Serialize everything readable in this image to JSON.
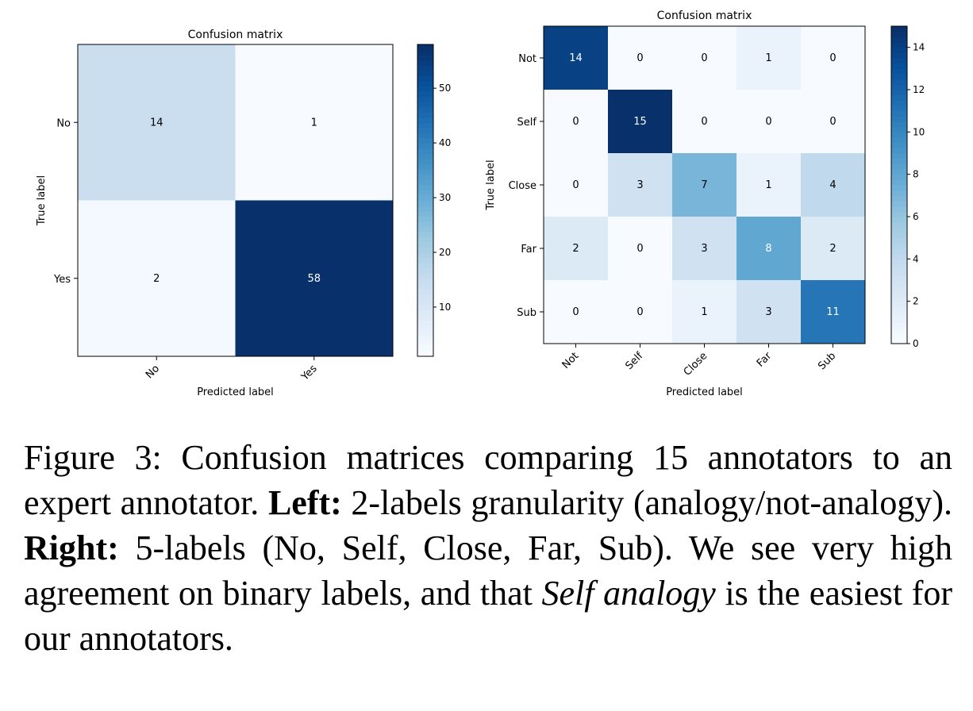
{
  "chart_data": [
    {
      "type": "heatmap",
      "title": "Confusion matrix",
      "xlabel": "Predicted label",
      "ylabel": "True label",
      "x_categories": [
        "No",
        "Yes"
      ],
      "y_categories": [
        "No",
        "Yes"
      ],
      "values": [
        [
          14,
          1
        ],
        [
          2,
          58
        ]
      ],
      "colormap": "Blues",
      "vmin": 1,
      "vmax": 58,
      "colorbar_ticks": [
        10,
        20,
        30,
        40,
        50
      ]
    },
    {
      "type": "heatmap",
      "title": "Confusion matrix",
      "xlabel": "Predicted label",
      "ylabel": "True label",
      "x_categories": [
        "Not",
        "Self",
        "Close",
        "Far",
        "Sub"
      ],
      "y_categories": [
        "Not",
        "Self",
        "Close",
        "Far",
        "Sub"
      ],
      "values": [
        [
          14,
          0,
          0,
          1,
          0
        ],
        [
          0,
          15,
          0,
          0,
          0
        ],
        [
          0,
          3,
          7,
          1,
          4
        ],
        [
          2,
          0,
          3,
          8,
          2
        ],
        [
          0,
          0,
          1,
          3,
          11
        ]
      ],
      "colormap": "Blues",
      "vmin": 0,
      "vmax": 15,
      "colorbar_ticks": [
        0,
        2,
        4,
        6,
        8,
        10,
        12,
        14
      ]
    }
  ],
  "caption": {
    "figure_label": "Figure 3:",
    "text_1": " Confusion matrices comparing 15 annotators to an expert annotator. ",
    "left_label": "Left:",
    "text_2": " 2-labels granularity (analogy/not-analogy). ",
    "right_label": "Right:",
    "text_3": " 5-labels (No, Self, Close, Far, Sub). We see very high agreement on binary labels, and that ",
    "italic": "Self analogy",
    "text_4": " is the easiest for our annotators."
  }
}
